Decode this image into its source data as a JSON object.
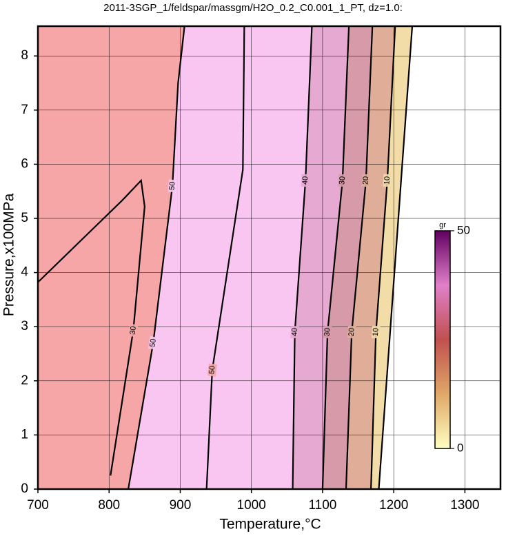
{
  "chart_data": {
    "type": "contour",
    "title": "2011-3SGP_1/feldspar/massgm/H2O_0.2_C0.001_1_PT, dz=1.0:",
    "x_label": "Temperature,°C",
    "y_label": "Pressure,x100MPa",
    "xlim": [
      700,
      1350
    ],
    "ylim": [
      0,
      8.55
    ],
    "xticks": [
      700,
      800,
      900,
      1000,
      1100,
      1200,
      1300
    ],
    "yticks": [
      0,
      1,
      2,
      3,
      4,
      5,
      6,
      7,
      8
    ],
    "grid": true,
    "background": "#f6a6a6",
    "contours": [
      {
        "level": 30,
        "labels": 1,
        "t": [
          802,
          834,
          850,
          845,
          819,
          700
        ],
        "p": [
          0.25,
          2.93,
          5.22,
          5.7,
          5.34,
          3.82
        ]
      },
      {
        "level": 50,
        "labels": 2,
        "fill": "#f9c6f2",
        "t": [
          827,
          862,
          889,
          897,
          906
        ],
        "p": [
          0,
          2.7,
          5.6,
          7.5,
          8.55
        ]
      },
      {
        "level": 50,
        "labels": 1,
        "t": [
          937,
          945,
          988,
          990
        ],
        "p": [
          0,
          2.2,
          5.9,
          8.55
        ]
      },
      {
        "level": 40,
        "labels": 2,
        "fill": "#e6aad2",
        "t": [
          1058,
          1061,
          1076,
          1085
        ],
        "p": [
          0,
          2.9,
          5.7,
          8.55
        ]
      },
      {
        "level": 30,
        "labels": 2,
        "fill": "#d69aa8",
        "t": [
          1100,
          1107,
          1128,
          1137
        ],
        "p": [
          0,
          2.9,
          5.7,
          8.55
        ]
      },
      {
        "level": 20,
        "labels": 2,
        "fill": "#e0ae98",
        "t": [
          1133,
          1141,
          1161,
          1170
        ],
        "p": [
          0,
          2.9,
          5.7,
          8.55
        ]
      },
      {
        "level": 10,
        "labels": 2,
        "fill": "#f2dca8",
        "t": [
          1168,
          1175,
          1191,
          1202
        ],
        "p": [
          0,
          2.9,
          5.7,
          8.55
        ]
      },
      {
        "level": 0,
        "labels": 0,
        "fill": "#ffffff",
        "t": [
          1179,
          1226
        ],
        "p": [
          0,
          8.55
        ]
      }
    ],
    "colorbar": {
      "label": "gr",
      "lim": [
        0,
        50
      ],
      "ticks": [
        0,
        50
      ],
      "colors": [
        "#ffffc0",
        "#e0a868",
        "#c05050",
        "#e080c8",
        "#600060"
      ]
    }
  }
}
